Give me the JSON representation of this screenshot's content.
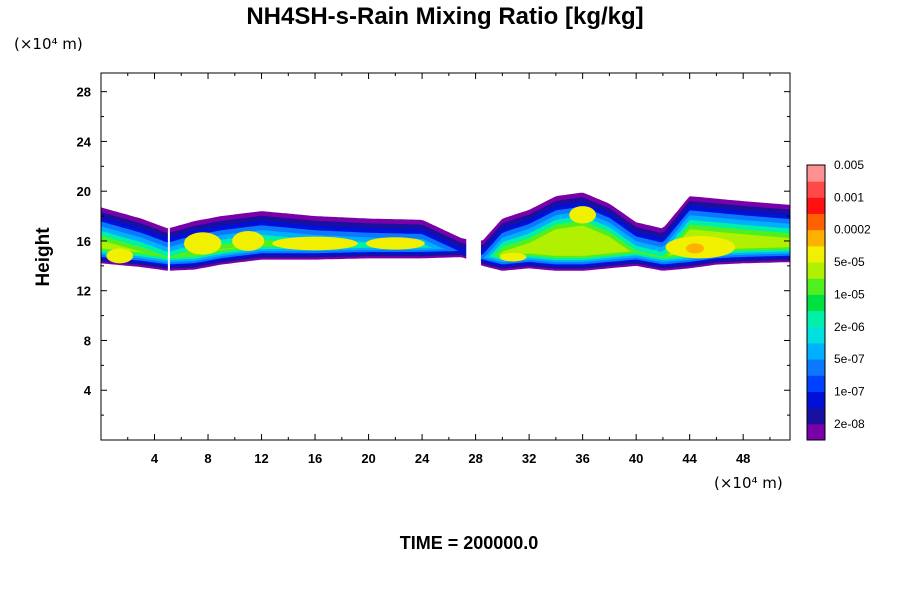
{
  "chart_data": {
    "type": "heatmap",
    "title": "NH4SH-s-Rain Mixing Ratio [kg/kg]",
    "ylabel": "Height",
    "y_unit_label": "(×10⁴ m)",
    "x_unit_label": "(×10⁴ m)",
    "time_label": "TIME = 200000.0",
    "xlim": [
      0,
      51.5
    ],
    "ylim": [
      0,
      29.5
    ],
    "xticks": [
      4,
      8,
      12,
      16,
      20,
      24,
      28,
      32,
      36,
      40,
      44,
      48
    ],
    "yticks": [
      4,
      8,
      12,
      16,
      20,
      24,
      28
    ],
    "grid": false,
    "colorbar": {
      "colors": [
        "#7a00a8",
        "#1a10a0",
        "#0010d8",
        "#0040ff",
        "#0a78ff",
        "#00b0ff",
        "#00e0e0",
        "#00f0a8",
        "#00e040",
        "#50f020",
        "#b0f000",
        "#f0f000",
        "#ffb000",
        "#ff6000",
        "#ff1010",
        "#ff4848",
        "#ff9090"
      ],
      "labels": [
        "2e-08",
        "1e-07",
        "5e-07",
        "2e-06",
        "1e-05",
        "5e-05",
        "0.0002",
        "0.001",
        "0.005"
      ]
    },
    "layer": {
      "bottom": [
        [
          0,
          14.2
        ],
        [
          3,
          13.9
        ],
        [
          5,
          13.6
        ],
        [
          7,
          13.7
        ],
        [
          9,
          14.1
        ],
        [
          12,
          14.5
        ],
        [
          16,
          14.5
        ],
        [
          20,
          14.6
        ],
        [
          24,
          14.6
        ],
        [
          27,
          14.7
        ],
        [
          28.5,
          14.0
        ],
        [
          30,
          13.6
        ],
        [
          32,
          13.8
        ],
        [
          34,
          13.6
        ],
        [
          36,
          13.6
        ],
        [
          38,
          13.8
        ],
        [
          40,
          14.0
        ],
        [
          42,
          13.6
        ],
        [
          44,
          13.8
        ],
        [
          46,
          14.1
        ],
        [
          48,
          14.2
        ],
        [
          51.5,
          14.3
        ]
      ],
      "top": [
        [
          0,
          18.7
        ],
        [
          3,
          17.8
        ],
        [
          5,
          17.0
        ],
        [
          7,
          17.6
        ],
        [
          9,
          18.0
        ],
        [
          12,
          18.4
        ],
        [
          16,
          18.0
        ],
        [
          20,
          17.8
        ],
        [
          24,
          17.7
        ],
        [
          27,
          16.2
        ],
        [
          28.5,
          16.0
        ],
        [
          30,
          17.8
        ],
        [
          32,
          18.5
        ],
        [
          34,
          19.6
        ],
        [
          36,
          19.9
        ],
        [
          38,
          19.0
        ],
        [
          40,
          17.5
        ],
        [
          42,
          17.0
        ],
        [
          44,
          19.6
        ],
        [
          46,
          19.4
        ],
        [
          48,
          19.2
        ],
        [
          51.5,
          18.9
        ]
      ],
      "gaps": [
        [
          5.0,
          5.1
        ],
        [
          27.3,
          28.4
        ]
      ],
      "peak": {
        "x": 44.4,
        "y": 15.4
      }
    }
  }
}
